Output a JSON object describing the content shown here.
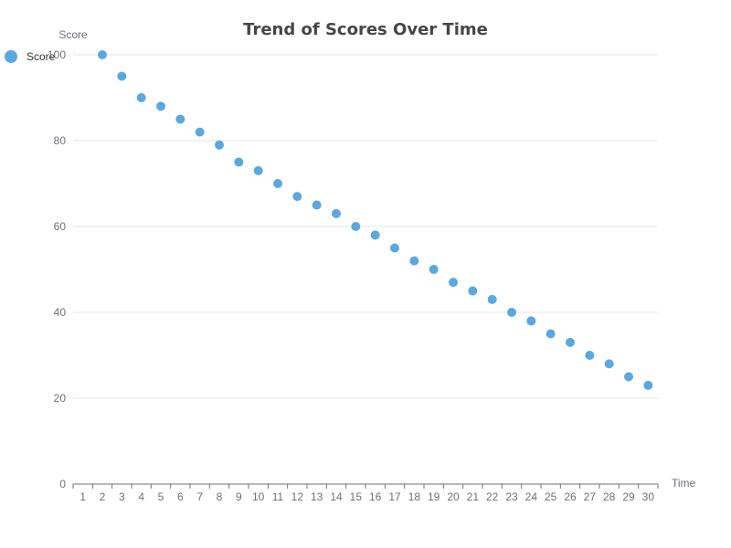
{
  "chart_data": {
    "type": "scatter",
    "title": "Trend of Scores Over Time",
    "xlabel": "Time",
    "ylabel": "Score",
    "categories": [
      "1",
      "2",
      "3",
      "4",
      "5",
      "6",
      "7",
      "8",
      "9",
      "10",
      "11",
      "12",
      "13",
      "14",
      "15",
      "16",
      "17",
      "18",
      "19",
      "20",
      "21",
      "22",
      "23",
      "24",
      "25",
      "26",
      "27",
      "28",
      "29",
      "30"
    ],
    "ylim": [
      0,
      100
    ],
    "yticks": [
      0,
      20,
      40,
      60,
      80,
      100
    ],
    "grid": true,
    "legend_position": "top-left",
    "series": [
      {
        "name": "Score",
        "color": "#5aa8de",
        "points": [
          {
            "x": "2",
            "y": 100
          },
          {
            "x": "3",
            "y": 95
          },
          {
            "x": "4",
            "y": 90
          },
          {
            "x": "5",
            "y": 88
          },
          {
            "x": "6",
            "y": 85
          },
          {
            "x": "7",
            "y": 82
          },
          {
            "x": "8",
            "y": 79
          },
          {
            "x": "9",
            "y": 75
          },
          {
            "x": "10",
            "y": 73
          },
          {
            "x": "11",
            "y": 70
          },
          {
            "x": "12",
            "y": 67
          },
          {
            "x": "13",
            "y": 65
          },
          {
            "x": "14",
            "y": 63
          },
          {
            "x": "15",
            "y": 60
          },
          {
            "x": "16",
            "y": 58
          },
          {
            "x": "17",
            "y": 55
          },
          {
            "x": "18",
            "y": 52
          },
          {
            "x": "19",
            "y": 50
          },
          {
            "x": "20",
            "y": 47
          },
          {
            "x": "21",
            "y": 45
          },
          {
            "x": "22",
            "y": 43
          },
          {
            "x": "23",
            "y": 40
          },
          {
            "x": "24",
            "y": 38
          },
          {
            "x": "25",
            "y": 35
          },
          {
            "x": "26",
            "y": 33
          },
          {
            "x": "27",
            "y": 30
          },
          {
            "x": "28",
            "y": 28
          },
          {
            "x": "29",
            "y": 25
          },
          {
            "x": "30",
            "y": 23
          }
        ]
      }
    ]
  }
}
